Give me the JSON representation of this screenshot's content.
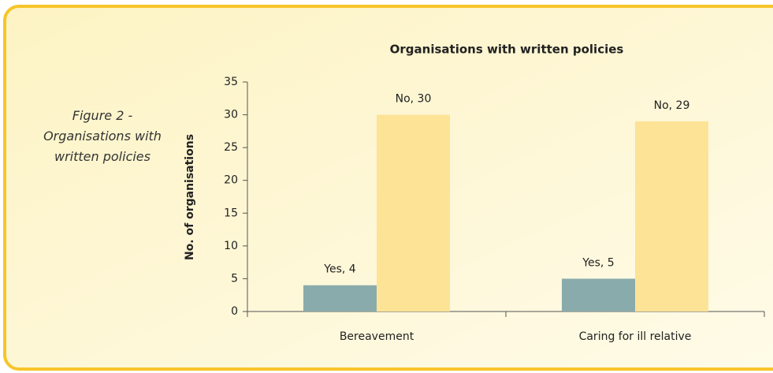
{
  "chart_data": {
    "type": "bar",
    "title": "Organisations with written policies",
    "caption": "Figure 2 - Organisations with written policies",
    "ylabel": "No. of organisations",
    "categories": [
      "Bereavement",
      "Caring for ill relative"
    ],
    "series": [
      {
        "color": "#8aabab",
        "values": [
          4,
          5
        ],
        "value_labels": [
          "Yes, 4",
          "Yes, 5"
        ]
      },
      {
        "color": "#fde396",
        "values": [
          30,
          29
        ],
        "value_labels": [
          "No, 30",
          "No, 29"
        ]
      }
    ],
    "ylim": [
      0,
      35
    ],
    "yticks": [
      0,
      5,
      10,
      15,
      20,
      25,
      30,
      35
    ],
    "grid": false
  }
}
